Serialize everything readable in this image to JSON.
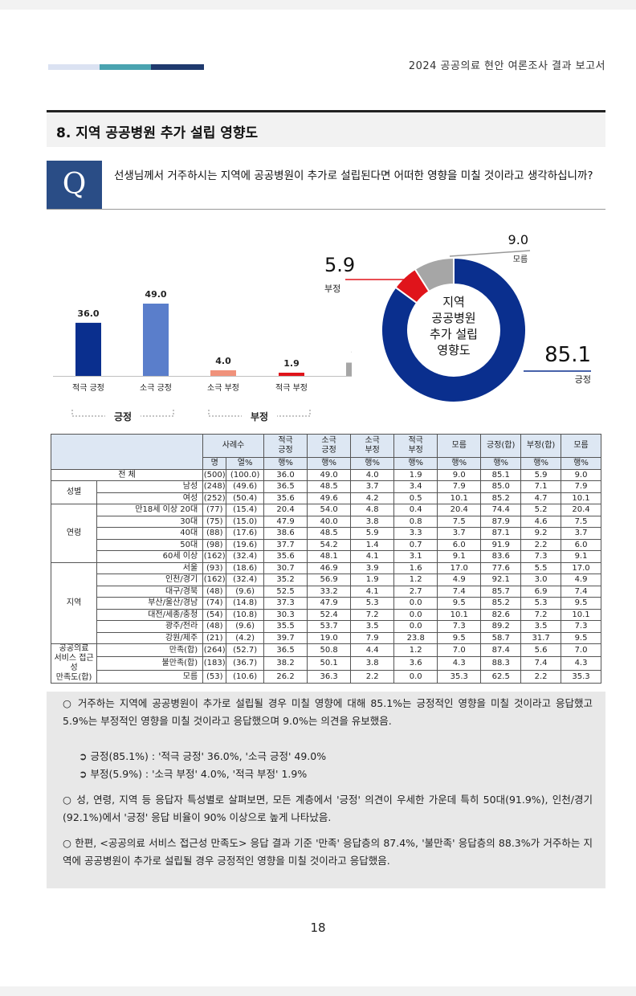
{
  "header": {
    "report_title": "2024 공공의료 현안 여론조사 결과 보고서"
  },
  "section": {
    "title": "8. 지역 공공병원 추가 설립 영향도"
  },
  "question": {
    "badge": "Q",
    "text": "선생님께서 거주하시는 지역에 공공병원이 추가로 설립된다면 어떠한 영향을 미칠 것이라고 생각하십니까?"
  },
  "colors": {
    "dark_blue": "#0a2f8e",
    "light_blue": "#5a7ecb",
    "salmon": "#f0927b",
    "red": "#e0141b",
    "gray": "#a6a6a6",
    "navy": "#2a4d86"
  },
  "chart_data": [
    {
      "type": "bar",
      "categories": [
        "적극 긍정",
        "소극 긍정",
        "소극 부정",
        "적극 부정",
        "모름"
      ],
      "values": [
        36.0,
        49.0,
        4.0,
        1.9,
        9.0
      ],
      "labels": [
        "36.0",
        "49.0",
        "4.0",
        "1.9",
        "9.0"
      ],
      "group_labels": [
        "긍정",
        "부정"
      ],
      "ylim": [
        0,
        55
      ]
    },
    {
      "type": "pie",
      "donut": true,
      "center_text": [
        "지역",
        "공공병원",
        "추가 설립",
        "영향도"
      ],
      "slices": [
        {
          "name": "긍정",
          "value": 85.1,
          "label": "85.1"
        },
        {
          "name": "부정",
          "value": 5.9,
          "label": "5.9"
        },
        {
          "name": "모름",
          "value": 9.0,
          "label": "9.0"
        }
      ]
    }
  ],
  "table": {
    "headers": {
      "base": "사례수",
      "cols": [
        "적극\n긍정",
        "소극\n긍정",
        "소극\n부정",
        "적극\n부정",
        "모름",
        "긍정(합)",
        "부정(합)",
        "모름"
      ],
      "units": [
        "명",
        "열%",
        "행%",
        "행%",
        "행%",
        "행%",
        "행%",
        "행%",
        "행%",
        "행%"
      ]
    },
    "groups": [
      {
        "name": "",
        "rows": [
          {
            "label": "전 체",
            "cells": [
              "(500)",
              "(100.0)",
              "36.0",
              "49.0",
              "4.0",
              "1.9",
              "9.0",
              "85.1",
              "5.9",
              "9.0"
            ]
          }
        ]
      },
      {
        "name": "성별",
        "rows": [
          {
            "label": "남성",
            "cells": [
              "(248)",
              "(49.6)",
              "36.5",
              "48.5",
              "3.7",
              "3.4",
              "7.9",
              "85.0",
              "7.1",
              "7.9"
            ]
          },
          {
            "label": "여성",
            "cells": [
              "(252)",
              "(50.4)",
              "35.6",
              "49.6",
              "4.2",
              "0.5",
              "10.1",
              "85.2",
              "4.7",
              "10.1"
            ]
          }
        ]
      },
      {
        "name": "연령",
        "rows": [
          {
            "label": "만18세 이상 20대",
            "cells": [
              "(77)",
              "(15.4)",
              "20.4",
              "54.0",
              "4.8",
              "0.4",
              "20.4",
              "74.4",
              "5.2",
              "20.4"
            ]
          },
          {
            "label": "30대",
            "cells": [
              "(75)",
              "(15.0)",
              "47.9",
              "40.0",
              "3.8",
              "0.8",
              "7.5",
              "87.9",
              "4.6",
              "7.5"
            ]
          },
          {
            "label": "40대",
            "cells": [
              "(88)",
              "(17.6)",
              "38.6",
              "48.5",
              "5.9",
              "3.3",
              "3.7",
              "87.1",
              "9.2",
              "3.7"
            ]
          },
          {
            "label": "50대",
            "cells": [
              "(98)",
              "(19.6)",
              "37.7",
              "54.2",
              "1.4",
              "0.7",
              "6.0",
              "91.9",
              "2.2",
              "6.0"
            ]
          },
          {
            "label": "60세 이상",
            "cells": [
              "(162)",
              "(32.4)",
              "35.6",
              "48.1",
              "4.1",
              "3.1",
              "9.1",
              "83.6",
              "7.3",
              "9.1"
            ]
          }
        ]
      },
      {
        "name": "지역",
        "rows": [
          {
            "label": "서울",
            "cells": [
              "(93)",
              "(18.6)",
              "30.7",
              "46.9",
              "3.9",
              "1.6",
              "17.0",
              "77.6",
              "5.5",
              "17.0"
            ]
          },
          {
            "label": "인천/경기",
            "cells": [
              "(162)",
              "(32.4)",
              "35.2",
              "56.9",
              "1.9",
              "1.2",
              "4.9",
              "92.1",
              "3.0",
              "4.9"
            ]
          },
          {
            "label": "대구/경북",
            "cells": [
              "(48)",
              "(9.6)",
              "52.5",
              "33.2",
              "4.1",
              "2.7",
              "7.4",
              "85.7",
              "6.9",
              "7.4"
            ]
          },
          {
            "label": "부산/울산/경남",
            "cells": [
              "(74)",
              "(14.8)",
              "37.3",
              "47.9",
              "5.3",
              "0.0",
              "9.5",
              "85.2",
              "5.3",
              "9.5"
            ]
          },
          {
            "label": "대전/세종/충청",
            "cells": [
              "(54)",
              "(10.8)",
              "30.3",
              "52.4",
              "7.2",
              "0.0",
              "10.1",
              "82.6",
              "7.2",
              "10.1"
            ]
          },
          {
            "label": "광주/전라",
            "cells": [
              "(48)",
              "(9.6)",
              "35.5",
              "53.7",
              "3.5",
              "0.0",
              "7.3",
              "89.2",
              "3.5",
              "7.3"
            ]
          },
          {
            "label": "강원/제주",
            "cells": [
              "(21)",
              "(4.2)",
              "39.7",
              "19.0",
              "7.9",
              "23.8",
              "9.5",
              "58.7",
              "31.7",
              "9.5"
            ]
          }
        ]
      },
      {
        "name": "공공의료\n서비스 접근성\n만족도(합)",
        "rows": [
          {
            "label": "만족(합)",
            "cells": [
              "(264)",
              "(52.7)",
              "36.5",
              "50.8",
              "4.4",
              "1.2",
              "7.0",
              "87.4",
              "5.6",
              "7.0"
            ]
          },
          {
            "label": "불만족(합)",
            "cells": [
              "(183)",
              "(36.7)",
              "38.2",
              "50.1",
              "3.8",
              "3.6",
              "4.3",
              "88.3",
              "7.4",
              "4.3"
            ]
          },
          {
            "label": "모름",
            "cells": [
              "(53)",
              "(10.6)",
              "26.2",
              "36.3",
              "2.2",
              "0.0",
              "35.3",
              "62.5",
              "2.2",
              "35.3"
            ]
          }
        ]
      }
    ]
  },
  "summary": {
    "p1": "○  거주하는 지역에 공공병원이 추가로 설립될 경우 미칠 영향에 대해 85.1%는 긍정적인 영향을 미칠 것이라고 응답했고 5.9%는 부정적인 영향을 미칠 것이라고 응답했으며 9.0%는 의견을 유보했음.",
    "b1": "➲ 긍정(85.1%) : '적극 긍정' 36.0%, '소극 긍정' 49.0%",
    "b2": "➲ 부정(5.9%) : '소극 부정' 4.0%, '적극 부정' 1.9%",
    "p2": "○  성, 연령, 지역 등 응답자 특성별로 살펴보면, 모든 계층에서 '긍정' 의견이 우세한 가운데 특히 50대(91.9%), 인천/경기(92.1%)에서 '긍정' 응답 비율이 90% 이상으로 높게 나타났음.",
    "p3": "○  한편, <공공의료 서비스 접근성 만족도> 응답 결과 기준 '만족' 응답층의 87.4%, '불만족' 응답층의 88.3%가 거주하는 지역에 공공병원이 추가로 설립될 경우 긍정적인 영향을 미칠 것이라고 응답했음."
  },
  "page_number": "18"
}
